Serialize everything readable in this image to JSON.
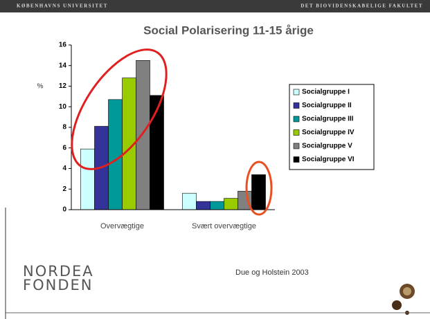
{
  "header": {
    "left": "KØBENHAVNS UNIVERSITET",
    "right": "DET BIOVIDENSKABELIGE FAKULTET"
  },
  "source": "Due og Holstein 2003",
  "logo": [
    "NORDEA",
    "FONDEN"
  ],
  "chart_data": {
    "type": "bar",
    "title": "Social Polarisering 11-15 årige",
    "y_label": "%",
    "categories": [
      "Overvægtige",
      "Svært overvægtige"
    ],
    "series": [
      {
        "name": "Socialgruppe I",
        "color": "#ccffff",
        "values": [
          5.9,
          1.6
        ]
      },
      {
        "name": "Socialgruppe II",
        "color": "#333399",
        "values": [
          8.1,
          0.8
        ]
      },
      {
        "name": "Socialgruppe III",
        "color": "#009999",
        "values": [
          10.7,
          0.8
        ]
      },
      {
        "name": "Socialgruppe IV",
        "color": "#99cc00",
        "values": [
          12.8,
          1.1
        ]
      },
      {
        "name": "Socialgruppe V",
        "color": "#808080",
        "values": [
          14.5,
          1.8
        ]
      },
      {
        "name": "Socialgruppe VI",
        "color": "#000000",
        "values": [
          11.1,
          3.4
        ]
      }
    ],
    "ylim": [
      0,
      16
    ],
    "yticks": [
      0,
      2,
      4,
      6,
      8,
      10,
      12,
      14,
      16
    ],
    "legend": "right"
  }
}
